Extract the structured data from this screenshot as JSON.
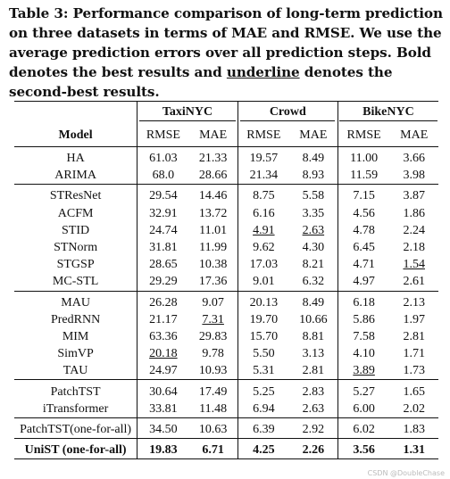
{
  "caption": {
    "part1": "Table 3: Performance comparison of long-term prediction on three datasets in terms of MAE and RMSE. We use the average prediction errors over all prediction steps. Bold denotes the best results and ",
    "underline_word": "underline",
    "part2": " denotes the second-best results."
  },
  "header": {
    "model_label": "Model",
    "datasets": [
      "TaxiNYC",
      "Crowd",
      "BikeNYC"
    ],
    "metrics": [
      "RMSE",
      "MAE"
    ]
  },
  "groups": [
    {
      "rows": [
        {
          "model": "HA",
          "values": [
            "61.03",
            "21.33",
            "19.57",
            "8.49",
            "11.00",
            "3.66"
          ]
        },
        {
          "model": "ARIMA",
          "values": [
            "68.0",
            "28.66",
            "21.34",
            "8.93",
            "11.59",
            "3.98"
          ]
        }
      ]
    },
    {
      "rows": [
        {
          "model": "STResNet",
          "values": [
            "29.54",
            "14.46",
            "8.75",
            "5.58",
            "7.15",
            "3.87"
          ]
        },
        {
          "model": "ACFM",
          "values": [
            "32.91",
            "13.72",
            "6.16",
            "3.35",
            "4.56",
            "1.86"
          ]
        },
        {
          "model": "STID",
          "values": [
            "24.74",
            "11.01",
            "4.91",
            "2.63",
            "4.78",
            "2.24"
          ],
          "underline": [
            2,
            3
          ]
        },
        {
          "model": "STNorm",
          "values": [
            "31.81",
            "11.99",
            "9.62",
            "4.30",
            "6.45",
            "2.18"
          ]
        },
        {
          "model": "STGSP",
          "values": [
            "28.65",
            "10.38",
            "17.03",
            "8.21",
            "4.71",
            "1.54"
          ],
          "underline": [
            5
          ]
        },
        {
          "model": "MC-STL",
          "values": [
            "29.29",
            "17.36",
            "9.01",
            "6.32",
            "4.97",
            "2.61"
          ]
        }
      ]
    },
    {
      "rows": [
        {
          "model": "MAU",
          "values": [
            "26.28",
            "9.07",
            "20.13",
            "8.49",
            "6.18",
            "2.13"
          ]
        },
        {
          "model": "PredRNN",
          "values": [
            "21.17",
            "7.31",
            "19.70",
            "10.66",
            "5.86",
            "1.97"
          ],
          "underline": [
            1
          ]
        },
        {
          "model": "MIM",
          "values": [
            "63.36",
            "29.83",
            "15.70",
            "8.81",
            "7.58",
            "2.81"
          ]
        },
        {
          "model": "SimVP",
          "values": [
            "20.18",
            "9.78",
            "5.50",
            "3.13",
            "4.10",
            "1.71"
          ],
          "underline": [
            0
          ]
        },
        {
          "model": "TAU",
          "values": [
            "24.97",
            "10.93",
            "5.31",
            "2.81",
            "3.89",
            "1.73"
          ],
          "underline": [
            4
          ]
        }
      ]
    },
    {
      "rows": [
        {
          "model": "PatchTST",
          "values": [
            "30.64",
            "17.49",
            "5.25",
            "2.83",
            "5.27",
            "1.65"
          ]
        },
        {
          "model": "iTransformer",
          "values": [
            "33.81",
            "11.48",
            "6.94",
            "2.63",
            "6.00",
            "2.02"
          ]
        }
      ]
    },
    {
      "rows": [
        {
          "model": "PatchTST(one-for-all)",
          "values": [
            "34.50",
            "10.63",
            "6.39",
            "2.92",
            "6.02",
            "1.83"
          ]
        }
      ]
    },
    {
      "rows": [
        {
          "model": "UniST (one-for-all)",
          "values": [
            "19.83",
            "6.71",
            "4.25",
            "2.26",
            "3.56",
            "1.31"
          ],
          "bold_all": true
        }
      ]
    }
  ],
  "watermark": "CSDN @DoubleChase"
}
